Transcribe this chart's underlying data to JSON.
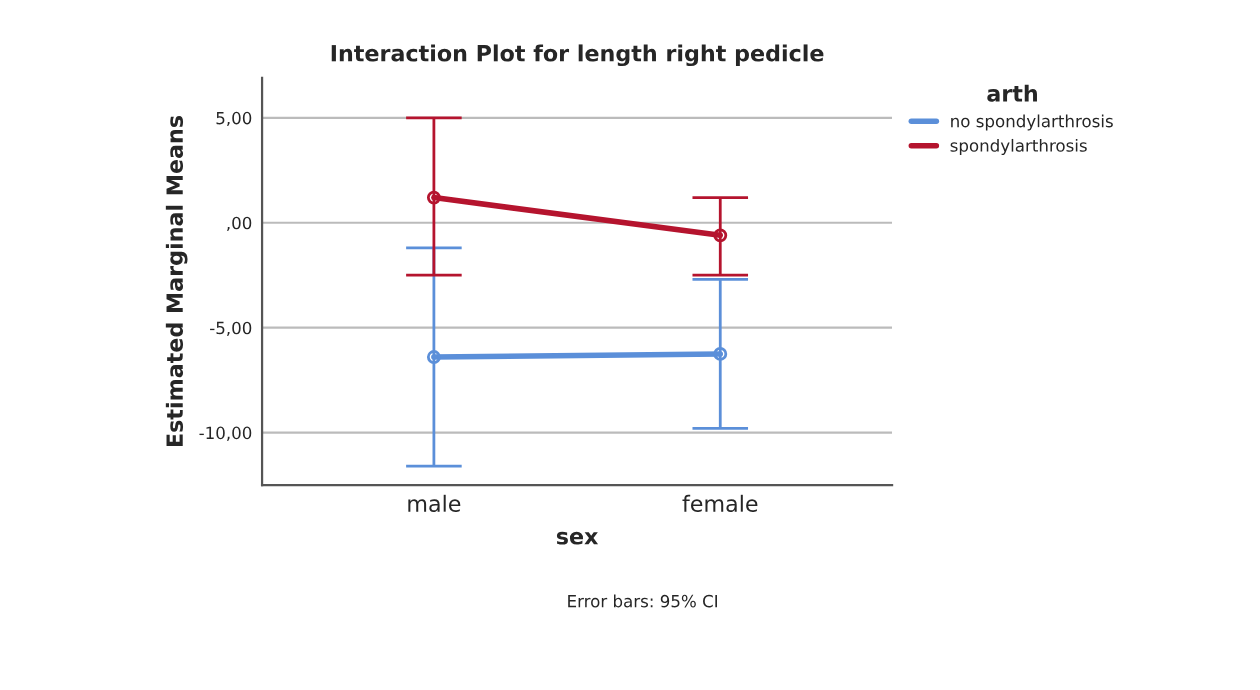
{
  "chart_data": {
    "type": "line",
    "title": "Interaction Plot for length right pedicle",
    "xlabel": "sex",
    "ylabel": "Estimated Marginal Means",
    "legend_title": "arth",
    "categories": [
      "male",
      "female"
    ],
    "series": [
      {
        "name": "no spondylarthrosis",
        "color": "#5b8fd9",
        "values": [
          -6.4,
          -6.25
        ],
        "errors": [
          [
            -11.6,
            -1.2
          ],
          [
            -9.8,
            -2.7
          ]
        ]
      },
      {
        "name": "spondylarthrosis",
        "color": "#b5142e",
        "values": [
          1.2,
          -0.6
        ],
        "errors": [
          [
            -2.5,
            5.0
          ],
          [
            -2.5,
            1.2
          ]
        ]
      }
    ],
    "ylim": [
      -12.5,
      6.9
    ],
    "yticks": [
      {
        "value": -10,
        "label": "-10,00"
      },
      {
        "value": -5,
        "label": "-5,00"
      },
      {
        "value": 0,
        "label": ",00"
      },
      {
        "value": 5,
        "label": "5,00"
      }
    ],
    "grid": "y",
    "legend": "top right",
    "marker": "circle",
    "line_style": "solid",
    "annotations": [
      "Error bars: 95% CI"
    ]
  }
}
